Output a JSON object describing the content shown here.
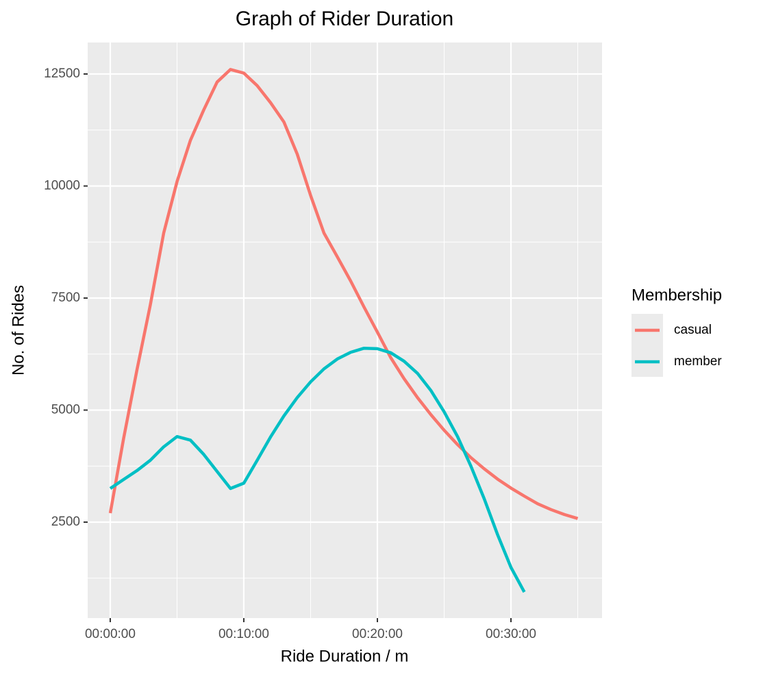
{
  "chart_data": {
    "type": "line",
    "title": "Graph of Rider Duration",
    "x_label": "Ride Duration / m",
    "y_label": "No. of Rides",
    "legend_title": "Membership",
    "legend": "right",
    "x": [
      0,
      1,
      2,
      3,
      4,
      5,
      6,
      7,
      8,
      9,
      10,
      11,
      12,
      13,
      14,
      15,
      16,
      17,
      18,
      19,
      20,
      21,
      22,
      23,
      24,
      25,
      26,
      27,
      28,
      29,
      30,
      31,
      32,
      33,
      34,
      35
    ],
    "series": [
      {
        "name": "casual",
        "color": "#f8766d",
        "values": [
          2700,
          4370,
          5900,
          7350,
          8950,
          10100,
          11020,
          11700,
          12320,
          12600,
          12520,
          12240,
          11860,
          11430,
          10710,
          9790,
          8950,
          8420,
          7880,
          7300,
          6740,
          6170,
          5700,
          5280,
          4900,
          4550,
          4230,
          3940,
          3690,
          3460,
          3260,
          3080,
          2910,
          2780,
          2670,
          2580
        ]
      },
      {
        "name": "member",
        "color": "#00bfc4",
        "values": [
          3250,
          3450,
          3650,
          3880,
          4180,
          4410,
          4330,
          4010,
          3630,
          3250,
          3370,
          3880,
          4400,
          4870,
          5280,
          5630,
          5920,
          6140,
          6290,
          6380,
          6370,
          6280,
          6090,
          5820,
          5440,
          4960,
          4410,
          3750,
          3020,
          2220,
          1490,
          940,
          null,
          null,
          null,
          null
        ]
      }
    ],
    "xlim": [
      -1.69,
      36.82
    ],
    "xticks": [
      {
        "value": 0,
        "label": "00:00:00"
      },
      {
        "value": 10,
        "label": "00:10:00"
      },
      {
        "value": 20,
        "label": "00:20:00"
      },
      {
        "value": 30,
        "label": "00:30:00"
      }
    ],
    "x_minor_grid": [
      5,
      15,
      25,
      35
    ],
    "ylim": [
      359,
      13203
    ],
    "yticks": [
      2500,
      5000,
      7500,
      10000,
      12500
    ],
    "y_minor_grid": [
      1250,
      3750,
      6250,
      8750,
      11250
    ],
    "grid": true
  }
}
